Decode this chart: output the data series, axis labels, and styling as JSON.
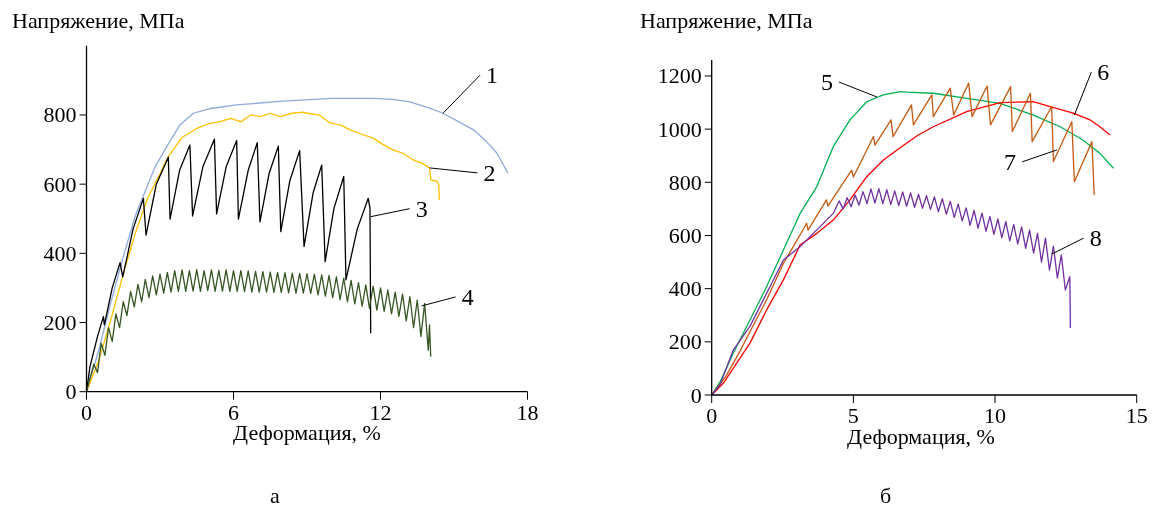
{
  "chart_data": [
    {
      "type": "line",
      "xlabel": "Деформация, %",
      "ylabel": "Напряжение, МПа",
      "xlim": [
        0,
        18
      ],
      "xticks": [
        0,
        6,
        12,
        18
      ],
      "ylim": [
        0,
        1000
      ],
      "yticks": [
        0,
        200,
        400,
        600,
        800
      ],
      "series": [
        {
          "color": "#8faadc",
          "x": [
            0,
            0.5,
            1,
            1.5,
            2,
            2.31,
            2.8,
            3.27,
            3.8,
            4.36,
            5,
            6.13,
            8,
            10,
            11.7,
            12.5,
            13.2,
            14,
            14.55,
            15.2,
            15.8,
            16.3,
            16.75,
            17.2
          ],
          "values": [
            0,
            120,
            260,
            390,
            510,
            564,
            650,
            708,
            770,
            805,
            818,
            829,
            840,
            848,
            848,
            845,
            838,
            820,
            805,
            780,
            757,
            725,
            690,
            632
          ]
        },
        {
          "color": "#ffc000",
          "x": [
            0,
            0.5,
            1,
            1.5,
            2,
            2.5,
            3,
            3.33,
            3.9,
            4.5,
            5,
            5.45,
            5.9,
            6.3,
            6.7,
            7.1,
            7.49,
            7.9,
            8.4,
            8.84,
            8.99,
            9.5,
            9.94,
            10.4,
            10.76,
            11.2,
            11.7,
            12.1,
            12.5,
            12.9,
            13.34,
            13.7,
            14.0,
            14.06,
            14.3,
            14.38,
            14.4
          ],
          "values": [
            0,
            90,
            210,
            340,
            460,
            560,
            630,
            679,
            735,
            761,
            775,
            781,
            790,
            780,
            800,
            795,
            805,
            795,
            805,
            808,
            805,
            800,
            777,
            770,
            757,
            745,
            733,
            715,
            699,
            690,
            670,
            660,
            647,
            612,
            609,
            598,
            554
          ]
        },
        {
          "color": "#000000",
          "x": [
            0,
            0.14,
            0.45,
            0.69,
            0.73,
            1.05,
            1.37,
            1.48,
            1.9,
            2.32,
            2.43,
            2.85,
            3.34,
            3.41,
            3.8,
            4.22,
            4.33,
            4.75,
            5.22,
            5.31,
            5.7,
            6.13,
            6.2,
            6.6,
            6.97,
            7.08,
            7.45,
            7.83,
            7.93,
            8.3,
            8.7,
            8.88,
            9.25,
            9.6,
            9.74,
            10.1,
            10.5,
            10.59,
            11.05,
            11.5,
            11.57,
            11.6
          ],
          "values": [
            0,
            72,
            160,
            217,
            193,
            300,
            373,
            332,
            470,
            559,
            453,
            600,
            678,
            499,
            640,
            713,
            508,
            650,
            730,
            514,
            650,
            726,
            499,
            640,
            720,
            491,
            630,
            710,
            463,
            610,
            697,
            420,
            575,
            655,
            376,
            530,
            622,
            323,
            470,
            559,
            531,
            169
          ]
        },
        {
          "color": "#375623",
          "x": [
            0,
            0.3,
            0.45,
            0.6,
            0.75,
            0.9,
            1.05,
            1.2,
            1.35,
            1.5,
            1.65,
            1.8,
            1.95,
            2.1,
            2.25,
            2.4,
            2.55,
            2.7,
            2.85,
            3.0,
            3.15,
            3.3,
            3.45,
            3.6,
            3.75,
            3.9,
            4.05,
            4.2,
            4.35,
            4.5,
            4.65,
            4.8,
            4.95,
            5.1,
            5.25,
            5.4,
            5.55,
            5.7,
            5.85,
            6.0,
            6.15,
            6.3,
            6.45,
            6.6,
            6.75,
            6.9,
            7.05,
            7.2,
            7.35,
            7.5,
            7.65,
            7.8,
            7.95,
            8.1,
            8.25,
            8.4,
            8.55,
            8.7,
            8.85,
            9.0,
            9.15,
            9.3,
            9.45,
            9.6,
            9.75,
            9.9,
            10.05,
            10.2,
            10.35,
            10.5,
            10.65,
            10.8,
            10.95,
            11.1,
            11.25,
            11.4,
            11.55,
            11.7,
            11.85,
            12.0,
            12.15,
            12.3,
            12.45,
            12.6,
            12.75,
            12.9,
            13.05,
            13.2,
            13.35,
            13.5,
            13.65,
            13.8,
            13.95,
            14.0,
            14.05
          ],
          "values": [
            0,
            80,
            55,
            140,
            105,
            185,
            145,
            225,
            185,
            260,
            220,
            290,
            245,
            310,
            260,
            325,
            272,
            335,
            280,
            340,
            285,
            345,
            288,
            350,
            290,
            352,
            290,
            350,
            291,
            353,
            290,
            350,
            292,
            352,
            290,
            351,
            291,
            352,
            290,
            350,
            290,
            350,
            289,
            349,
            288,
            348,
            288,
            347,
            288,
            346,
            287,
            345,
            287,
            344,
            286,
            343,
            285,
            342,
            285,
            341,
            284,
            340,
            280,
            338,
            276,
            336,
            272,
            332,
            266,
            328,
            260,
            322,
            254,
            315,
            247,
            309,
            241,
            305,
            236,
            300,
            232,
            294,
            225,
            288,
            218,
            282,
            205,
            275,
            185,
            265,
            160,
            255,
            120,
            193,
            101
          ]
        }
      ],
      "annotations": [
        {
          "text": "1",
          "x": 14.55,
          "y": 805
        },
        {
          "text": "2",
          "x": 14.0,
          "y": 647
        },
        {
          "text": "3",
          "x": 11.6,
          "y": 506
        },
        {
          "text": "4",
          "x": 13.68,
          "y": 248
        },
        "а"
      ]
    },
    {
      "type": "line",
      "xlabel": "Деформация, %",
      "ylabel": "Напряжение, МПа",
      "xlim": [
        0,
        15
      ],
      "xticks": [
        0,
        5,
        10,
        15
      ],
      "ylim": [
        0,
        1260
      ],
      "yticks": [
        0,
        200,
        400,
        600,
        800,
        1000,
        1200
      ],
      "series": [
        {
          "color": "#00b050",
          "x": [
            0,
            0.3,
            0.76,
            1.35,
            1.94,
            2.53,
            3.12,
            3.71,
            4.29,
            4.88,
            5.47,
            6.06,
            6.65,
            6.88,
            7.82,
            9.0,
            10.18,
            11.35,
            12.3,
            13.1,
            13.7,
            14.18
          ],
          "values": [
            0,
            50,
            157,
            282,
            408,
            545,
            683,
            784,
            934,
            1035,
            1103,
            1129,
            1141,
            1139,
            1135,
            1116,
            1097,
            1053,
            1009,
            959,
            909,
            853
          ]
        },
        {
          "color": "#ff0000",
          "x": [
            0,
            0.41,
            1.35,
            1.94,
            2.53,
            3.12,
            3.71,
            4.29,
            4.88,
            5.47,
            6.06,
            6.65,
            7.29,
            7.82,
            9.0,
            10.18,
            11.35,
            11.94,
            12.76,
            13.35,
            13.7,
            14.06
          ],
          "values": [
            0,
            44,
            195,
            320,
            433,
            564,
            608,
            658,
            734,
            821,
            884,
            930,
            978,
            1009,
            1066,
            1100,
            1103,
            1085,
            1060,
            1035,
            1009,
            978
          ]
        },
        {
          "color": "#c55a11",
          "x": [
            0,
            0.5,
            1,
            1.35,
            1.94,
            2.53,
            3.12,
            3.35,
            3.4,
            4.05,
            4.1,
            4.94,
            5.0,
            5.71,
            5.76,
            6.33,
            6.4,
            7.05,
            7.12,
            7.77,
            7.82,
            8.42,
            8.54,
            9.07,
            9.19,
            9.72,
            9.84,
            10.55,
            10.61,
            11.25,
            11.31,
            12.0,
            12.06,
            12.71,
            12.8,
            13.42,
            13.5
          ],
          "values": [
            0,
            70,
            165,
            238,
            358,
            495,
            602,
            646,
            620,
            734,
            710,
            846,
            820,
            972,
            940,
            1035,
            972,
            1091,
            1016,
            1129,
            1047,
            1154,
            1053,
            1173,
            1047,
            1162,
            1016,
            1160,
            991,
            1135,
            953,
            1085,
            878,
            1028,
            802,
            953,
            752
          ]
        },
        {
          "color": "#7030a0",
          "x": [
            0,
            0.3,
            0.76,
            1.35,
            1.94,
            2.53,
            3.12,
            3.71,
            4.29,
            4.5,
            4.64,
            4.78,
            4.92,
            5.06,
            5.2,
            5.34,
            5.48,
            5.62,
            5.76,
            5.9,
            6.04,
            6.18,
            6.32,
            6.46,
            6.6,
            6.74,
            6.88,
            7.02,
            7.16,
            7.3,
            7.44,
            7.58,
            7.72,
            7.86,
            8.0,
            8.14,
            8.28,
            8.42,
            8.56,
            8.7,
            8.84,
            8.98,
            9.12,
            9.26,
            9.4,
            9.54,
            9.68,
            9.82,
            9.96,
            10.1,
            10.24,
            10.38,
            10.52,
            10.66,
            10.8,
            10.94,
            11.08,
            11.22,
            11.36,
            11.5,
            11.64,
            11.78,
            11.92,
            12.06,
            12.2,
            12.34,
            12.48,
            12.64,
            12.66
          ],
          "values": [
            0,
            40,
            169,
            258,
            383,
            508,
            558,
            621,
            683,
            730,
            700,
            742,
            708,
            752,
            714,
            765,
            720,
            775,
            722,
            776,
            720,
            772,
            716,
            768,
            712,
            764,
            710,
            760,
            706,
            755,
            702,
            750,
            698,
            745,
            690,
            738,
            680,
            728,
            668,
            718,
            655,
            704,
            638,
            694,
            628,
            684,
            616,
            672,
            604,
            662,
            592,
            652,
            580,
            642,
            568,
            632,
            552,
            620,
            534,
            608,
            500,
            590,
            470,
            560,
            440,
            527,
            395,
            445,
            252
          ]
        }
      ],
      "annotations": [
        {
          "text": "5",
          "x": 5.83,
          "y": 1121
        },
        {
          "text": "6",
          "x": 12.8,
          "y": 1053
        },
        {
          "text": "7",
          "x": 12.19,
          "y": 922
        },
        {
          "text": "8",
          "x": 12.0,
          "y": 530
        },
        "б"
      ]
    }
  ]
}
